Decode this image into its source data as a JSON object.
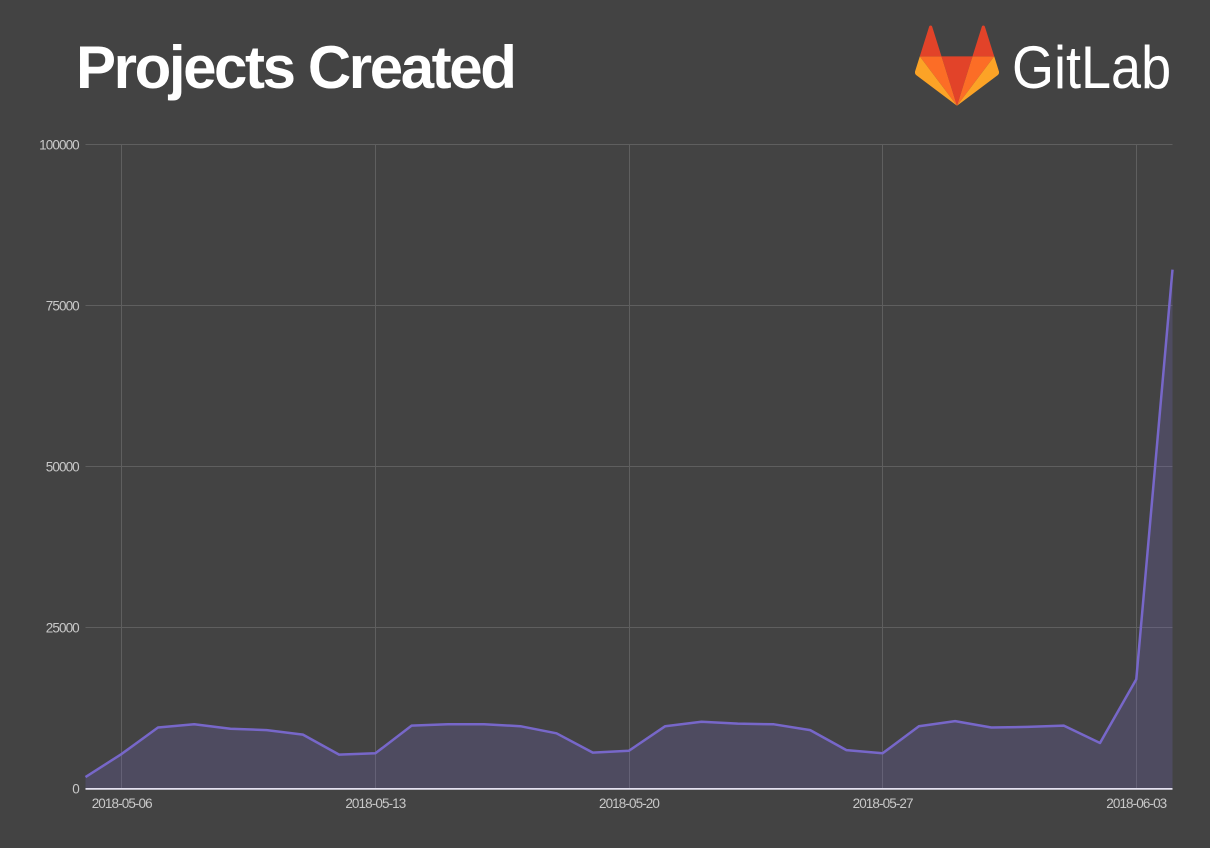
{
  "page": {
    "background": "#434343"
  },
  "header": {
    "title": "Projects Created",
    "brand": "GitLab",
    "logo_colors": {
      "red": "#e24329",
      "orange": "#fc6d26",
      "yellow": "#fca326"
    }
  },
  "chart_data": {
    "type": "area",
    "title": "Projects Created",
    "x": [
      "2018-05-05",
      "2018-05-06",
      "2018-05-07",
      "2018-05-08",
      "2018-05-09",
      "2018-05-10",
      "2018-05-11",
      "2018-05-12",
      "2018-05-13",
      "2018-05-14",
      "2018-05-15",
      "2018-05-16",
      "2018-05-17",
      "2018-05-18",
      "2018-05-19",
      "2018-05-20",
      "2018-05-21",
      "2018-05-22",
      "2018-05-23",
      "2018-05-24",
      "2018-05-25",
      "2018-05-26",
      "2018-05-27",
      "2018-05-28",
      "2018-05-29",
      "2018-05-30",
      "2018-05-31",
      "2018-06-01",
      "2018-06-02",
      "2018-06-03",
      "2018-06-04"
    ],
    "series": [
      {
        "name": "Projects Created",
        "values": [
          1800,
          5400,
          9500,
          10000,
          9300,
          9100,
          8400,
          5300,
          5500,
          9800,
          10000,
          10000,
          9700,
          8600,
          5600,
          5900,
          9700,
          10400,
          10100,
          10000,
          9100,
          6000,
          5500,
          9700,
          10500,
          9500,
          9600,
          9800,
          7100,
          17000,
          80600
        ]
      }
    ],
    "xlabel": "",
    "ylabel": "",
    "x_tick_labels": [
      "2018-05-06",
      "2018-05-13",
      "2018-05-20",
      "2018-05-27",
      "2018-06-03"
    ],
    "y_ticks": [
      0,
      25000,
      50000,
      75000,
      100000
    ],
    "y_tick_labels": [
      "0",
      "25000",
      "50000",
      "75000",
      "100000"
    ],
    "ylim": [
      0,
      100000
    ],
    "grid": true,
    "legend": "none",
    "colors": {
      "line": "#7767c9",
      "fill_opacity": 0.22,
      "gridline": "#5f5f5f",
      "axis_line": "#e4e1f0",
      "tick_label": "#c8c8c8"
    }
  }
}
